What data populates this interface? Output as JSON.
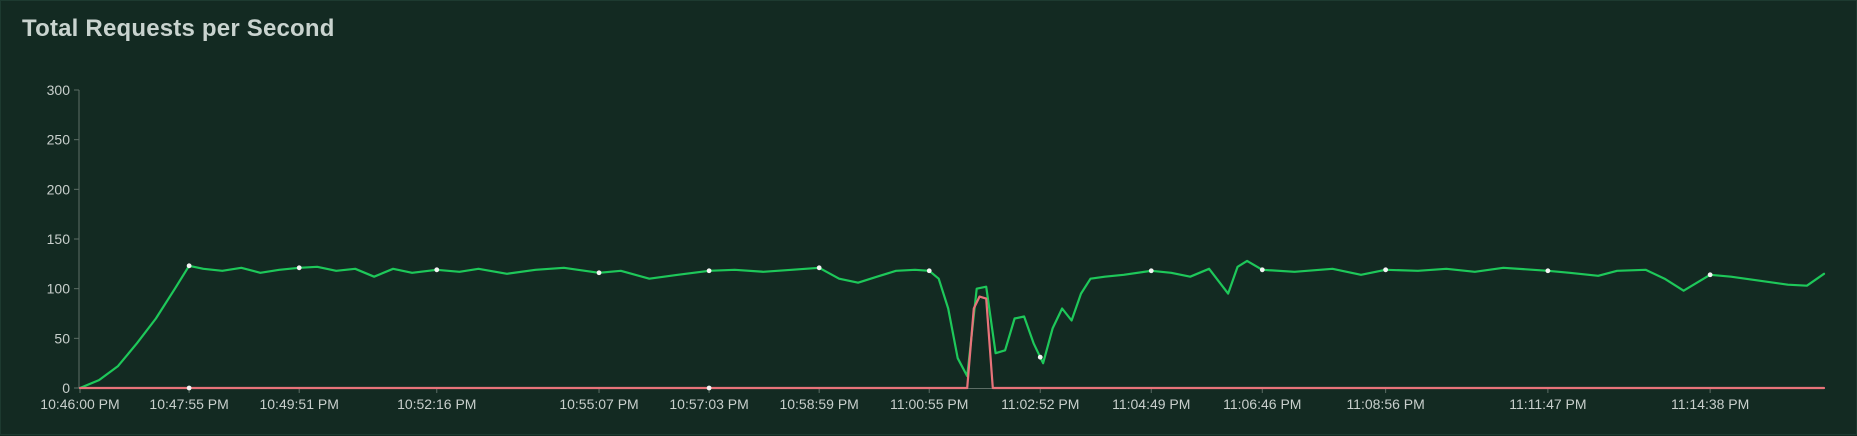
{
  "chart_data": {
    "type": "line",
    "title": "Total Requests per Second",
    "xlabel": "",
    "ylabel": "",
    "ylim": [
      0,
      300
    ],
    "y_ticks": [
      "0",
      "50",
      "100",
      "150",
      "200",
      "250",
      "300"
    ],
    "x_tick_labels": [
      "10:46:00 PM",
      "10:47:55 PM",
      "10:49:51 PM",
      "10:52:16 PM",
      "10:55:07 PM",
      "10:57:03 PM",
      "10:58:59 PM",
      "11:00:55 PM",
      "11:02:52 PM",
      "11:04:49 PM",
      "11:06:46 PM",
      "11:08:56 PM",
      "11:11:47 PM",
      "11:14:38 PM"
    ],
    "xlim": [
      "10:46:00 PM",
      "11:16:38 PM"
    ],
    "grid": false,
    "legend": "none",
    "series": [
      {
        "color": "#1ec85a",
        "points": [
          [
            "10:46:00 PM",
            0
          ],
          [
            "10:46:20 PM",
            8
          ],
          [
            "10:46:40 PM",
            22
          ],
          [
            "10:47:00 PM",
            45
          ],
          [
            "10:47:20 PM",
            70
          ],
          [
            "10:47:40 PM",
            100
          ],
          [
            "10:47:55 PM",
            123
          ],
          [
            "10:48:10 PM",
            120
          ],
          [
            "10:48:30 PM",
            118
          ],
          [
            "10:48:50 PM",
            121
          ],
          [
            "10:49:10 PM",
            116
          ],
          [
            "10:49:30 PM",
            119
          ],
          [
            "10:49:51 PM",
            121
          ],
          [
            "10:50:10 PM",
            122
          ],
          [
            "10:50:30 PM",
            118
          ],
          [
            "10:50:50 PM",
            120
          ],
          [
            "10:51:10 PM",
            112
          ],
          [
            "10:51:30 PM",
            120
          ],
          [
            "10:51:50 PM",
            116
          ],
          [
            "10:52:16 PM",
            119
          ],
          [
            "10:52:40 PM",
            117
          ],
          [
            "10:53:00 PM",
            120
          ],
          [
            "10:53:30 PM",
            115
          ],
          [
            "10:54:00 PM",
            119
          ],
          [
            "10:54:30 PM",
            121
          ],
          [
            "10:55:07 PM",
            116
          ],
          [
            "10:55:30 PM",
            118
          ],
          [
            "10:56:00 PM",
            110
          ],
          [
            "10:56:30 PM",
            114
          ],
          [
            "10:57:03 PM",
            118
          ],
          [
            "10:57:30 PM",
            119
          ],
          [
            "10:58:00 PM",
            117
          ],
          [
            "10:58:30 PM",
            119
          ],
          [
            "10:58:59 PM",
            121
          ],
          [
            "10:59:20 PM",
            110
          ],
          [
            "10:59:40 PM",
            106
          ],
          [
            "11:00:00 PM",
            112
          ],
          [
            "11:00:20 PM",
            118
          ],
          [
            "11:00:40 PM",
            119
          ],
          [
            "11:00:55 PM",
            118
          ],
          [
            "11:01:05 PM",
            110
          ],
          [
            "11:01:15 PM",
            80
          ],
          [
            "11:01:25 PM",
            30
          ],
          [
            "11:01:35 PM",
            12
          ],
          [
            "11:01:45 PM",
            100
          ],
          [
            "11:01:55 PM",
            102
          ],
          [
            "11:02:05 PM",
            35
          ],
          [
            "11:02:15 PM",
            38
          ],
          [
            "11:02:25 PM",
            70
          ],
          [
            "11:02:35 PM",
            72
          ],
          [
            "11:02:45 PM",
            45
          ],
          [
            "11:02:55 PM",
            25
          ],
          [
            "11:03:05 PM",
            60
          ],
          [
            "11:03:15 PM",
            80
          ],
          [
            "11:03:25 PM",
            68
          ],
          [
            "11:03:35 PM",
            95
          ],
          [
            "11:03:45 PM",
            110
          ],
          [
            "11:04:00 PM",
            112
          ],
          [
            "11:04:20 PM",
            114
          ],
          [
            "11:04:49 PM",
            118
          ],
          [
            "11:05:10 PM",
            116
          ],
          [
            "11:05:30 PM",
            112
          ],
          [
            "11:05:50 PM",
            120
          ],
          [
            "11:06:10 PM",
            95
          ],
          [
            "11:06:20 PM",
            122
          ],
          [
            "11:06:30 PM",
            128
          ],
          [
            "11:06:46 PM",
            119
          ],
          [
            "11:07:20 PM",
            117
          ],
          [
            "11:08:00 PM",
            120
          ],
          [
            "11:08:30 PM",
            114
          ],
          [
            "11:08:56 PM",
            119
          ],
          [
            "11:09:30 PM",
            118
          ],
          [
            "11:10:00 PM",
            120
          ],
          [
            "11:10:30 PM",
            117
          ],
          [
            "11:11:00 PM",
            121
          ],
          [
            "11:11:47 PM",
            118
          ],
          [
            "11:12:10 PM",
            116
          ],
          [
            "11:12:40 PM",
            113
          ],
          [
            "11:13:00 PM",
            118
          ],
          [
            "11:13:30 PM",
            119
          ],
          [
            "11:13:50 PM",
            110
          ],
          [
            "11:14:10 PM",
            98
          ],
          [
            "11:14:38 PM",
            114
          ],
          [
            "11:15:00 PM",
            112
          ],
          [
            "11:15:30 PM",
            108
          ],
          [
            "11:16:00 PM",
            104
          ],
          [
            "11:16:20 PM",
            103
          ],
          [
            "11:16:38 PM",
            115
          ]
        ]
      },
      {
        "color": "#e8737a",
        "points": [
          [
            "10:46:00 PM",
            0
          ],
          [
            "11:01:35 PM",
            0
          ],
          [
            "11:01:42 PM",
            80
          ],
          [
            "11:01:48 PM",
            92
          ],
          [
            "11:01:55 PM",
            90
          ],
          [
            "11:02:02 PM",
            0
          ],
          [
            "11:16:38 PM",
            0
          ]
        ]
      }
    ]
  }
}
